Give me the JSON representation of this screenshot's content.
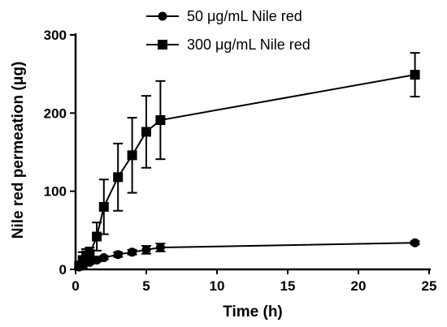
{
  "chart_data": {
    "type": "line",
    "xlabel": "Time (h)",
    "ylabel": "Nile red permeation (μg)",
    "xlim": [
      0,
      25
    ],
    "ylim": [
      0,
      300
    ],
    "xticks": [
      0,
      5,
      10,
      15,
      20,
      25
    ],
    "yticks": [
      0,
      100,
      200,
      300
    ],
    "legend_position": "top-center",
    "series": [
      {
        "name": "50 μg/mL Nile red",
        "marker": "circle",
        "color": "#000000",
        "x": [
          0.25,
          0.5,
          1,
          1.5,
          2,
          3,
          4,
          5,
          6,
          24
        ],
        "y": [
          3,
          6,
          9,
          12,
          15,
          19,
          22,
          25,
          28,
          34
        ],
        "err": [
          1,
          2,
          2,
          2,
          2,
          3,
          3,
          5,
          5,
          2
        ]
      },
      {
        "name": "300 μg/mL Nile red",
        "marker": "square",
        "color": "#000000",
        "x": [
          0.25,
          0.5,
          0.75,
          1,
          1.5,
          2,
          3,
          4,
          5,
          6,
          24
        ],
        "y": [
          5,
          12,
          18,
          20,
          42,
          80,
          118,
          146,
          176,
          191,
          249
        ],
        "err": [
          3,
          10,
          8,
          8,
          18,
          35,
          43,
          48,
          46,
          50,
          28
        ]
      }
    ]
  }
}
